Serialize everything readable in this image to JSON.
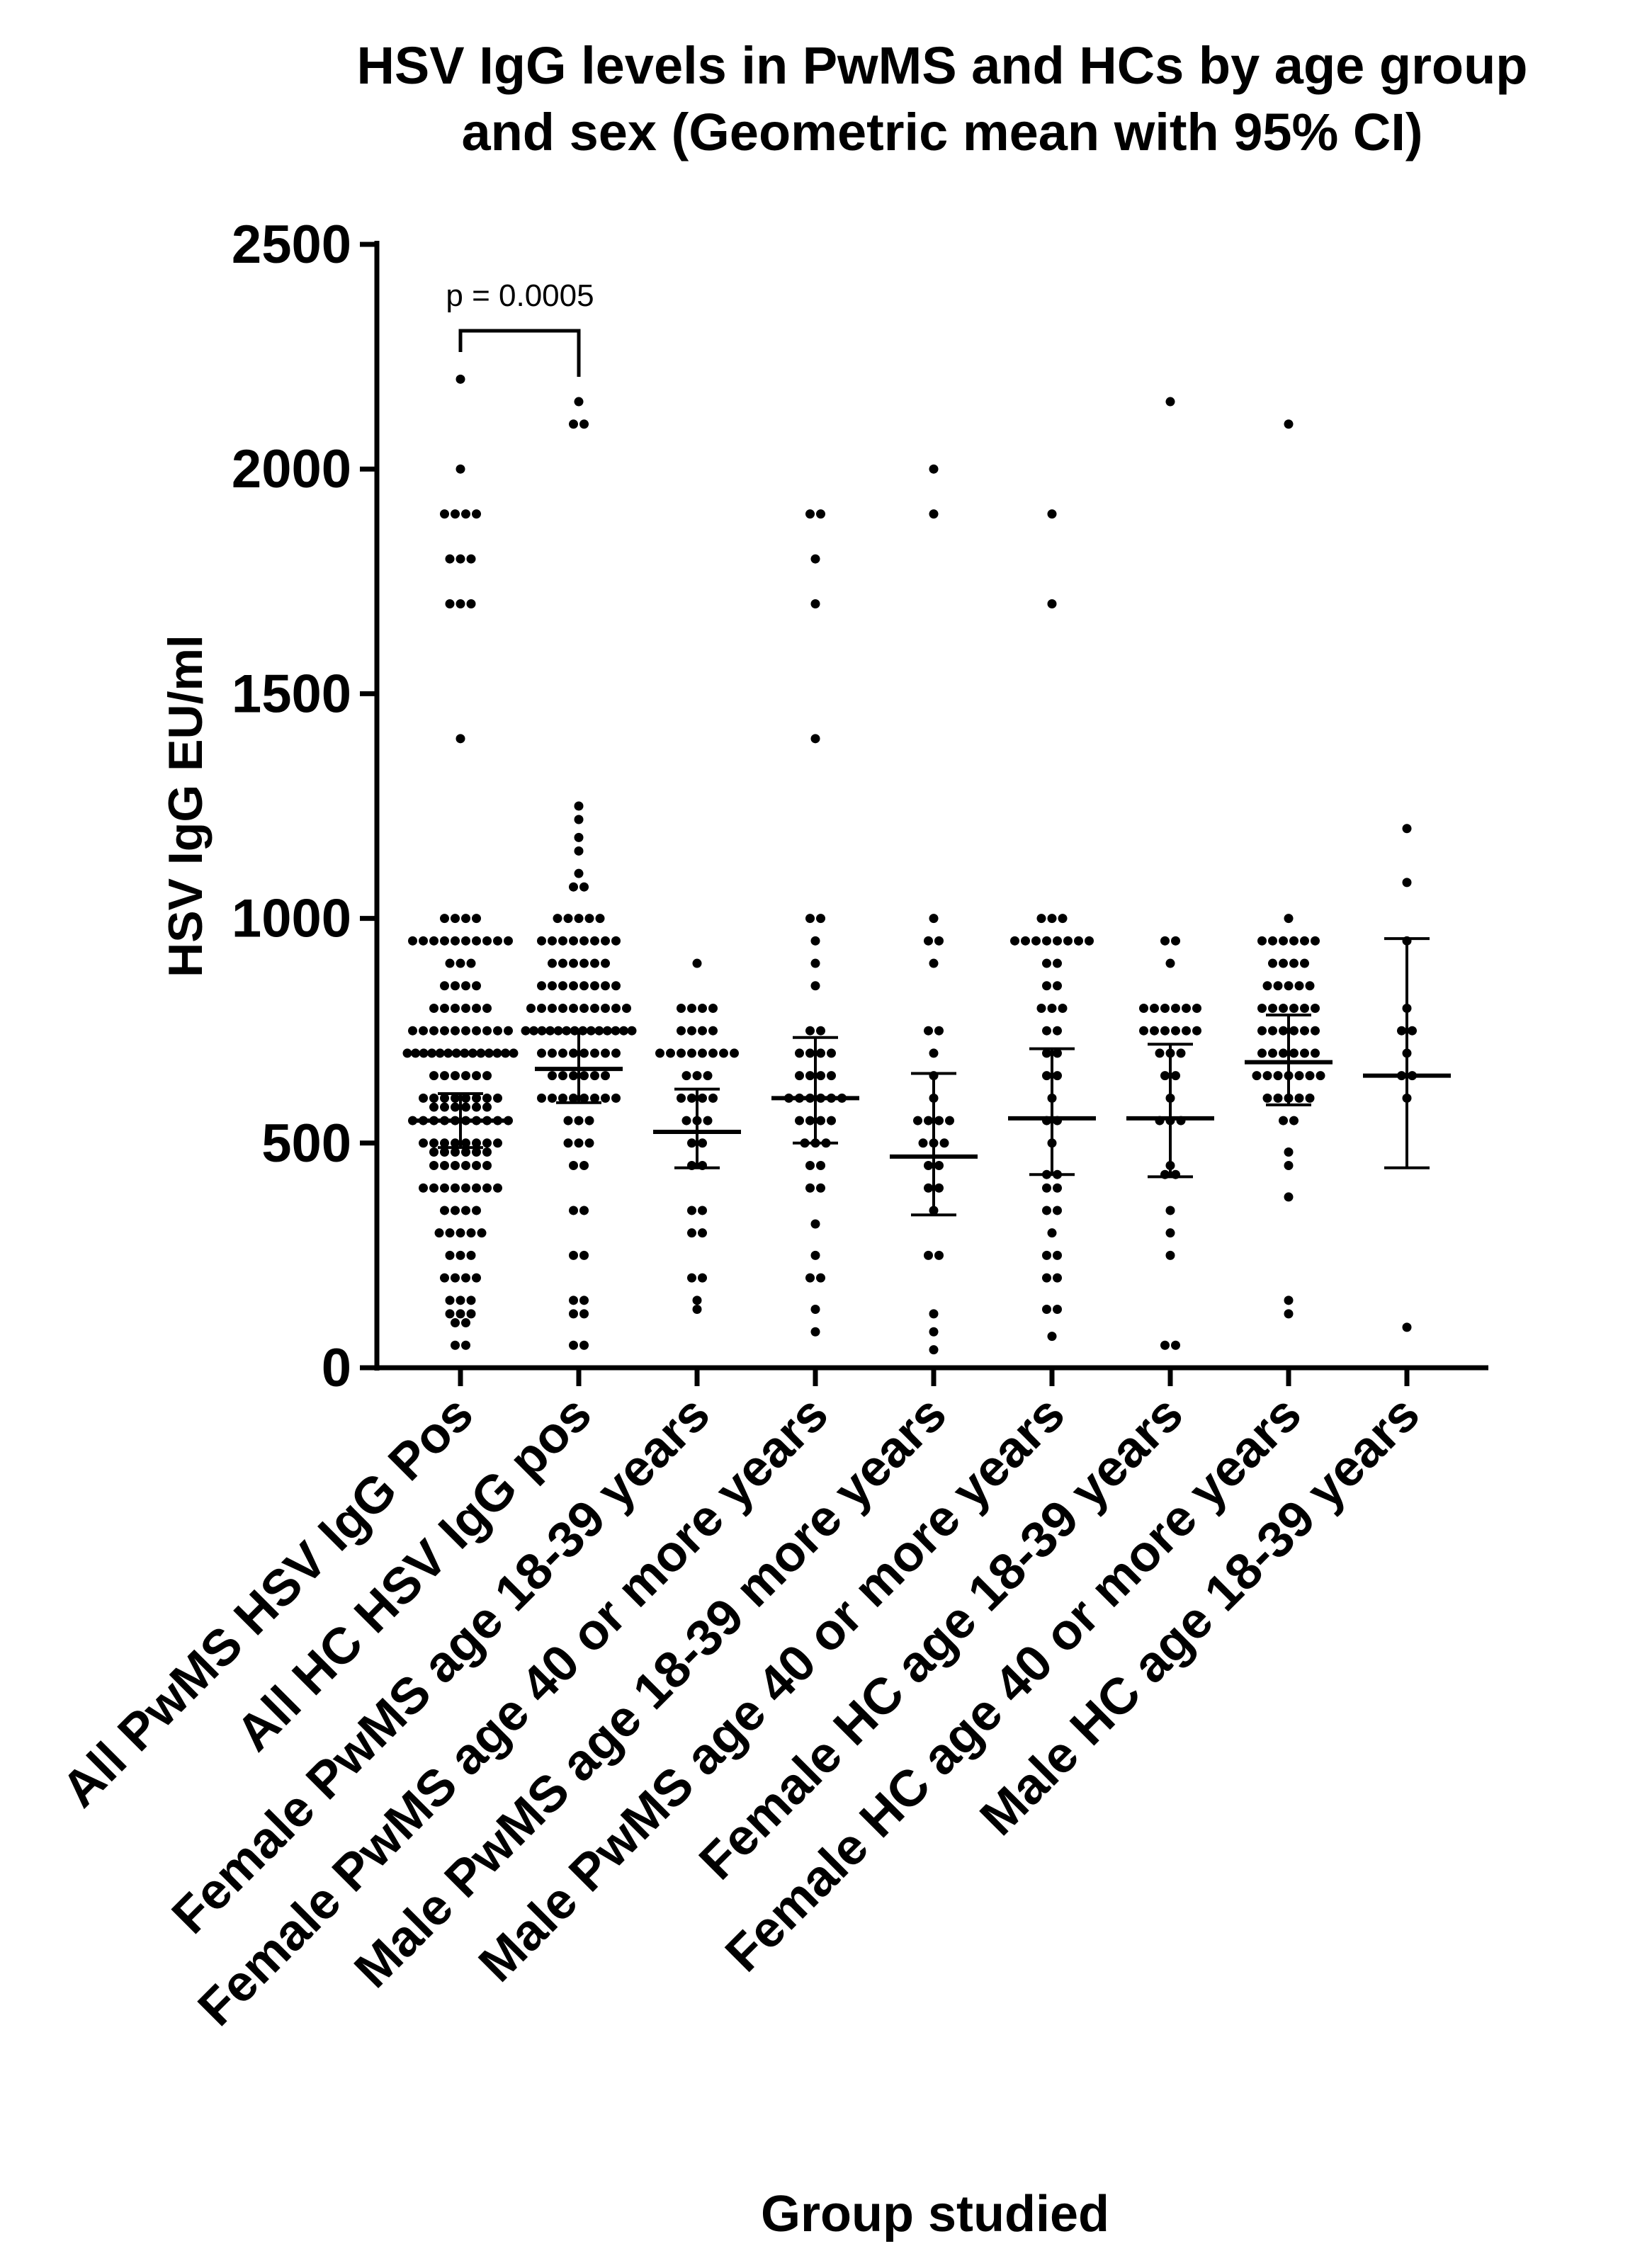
{
  "chart_data": {
    "type": "dotplot",
    "title": [
      "HSV IgG levels in PwMS and HCs by age group",
      "and sex (Geometric mean with 95% CI)"
    ],
    "y_label": "HSV IgG EU/ml",
    "x_label": "Group studied",
    "annotation": "p = 0.0005",
    "categories": [
      "All PwMS HSV IgG Pos",
      "All HC HSV IgG pos",
      "Female PwMS age 18-39 years",
      "Female PwMS age 40 or more years",
      "Male PwMS age 18-39 more years",
      "Male PwMS age 40 or more years",
      "Female HC age 18-39 years",
      "Female HC age 40 or more years",
      "Male HC age 18-39 years"
    ],
    "points": [
      [
        2200,
        2000,
        1900,
        1900,
        1900,
        1900,
        1800,
        1800,
        1800,
        1700,
        1700,
        1700,
        1400,
        1000,
        1000,
        1000,
        1000,
        950,
        950,
        950,
        950,
        950,
        950,
        950,
        950,
        950,
        950,
        900,
        900,
        900,
        850,
        850,
        850,
        850,
        800,
        800,
        800,
        800,
        800,
        800,
        750,
        750,
        750,
        750,
        750,
        750,
        750,
        750,
        750,
        750,
        700,
        700,
        700,
        700,
        700,
        700,
        700,
        700,
        700,
        700,
        700,
        700,
        700,
        700,
        650,
        650,
        650,
        650,
        650,
        650,
        600,
        600,
        600,
        600,
        600,
        600,
        600,
        600,
        580,
        580,
        580,
        580,
        580,
        580,
        550,
        550,
        550,
        550,
        550,
        550,
        550,
        550,
        550,
        550,
        500,
        500,
        500,
        500,
        500,
        500,
        500,
        500,
        480,
        480,
        480,
        480,
        480,
        480,
        450,
        450,
        450,
        450,
        450,
        450,
        400,
        400,
        400,
        400,
        400,
        400,
        400,
        400,
        350,
        350,
        350,
        350,
        300,
        300,
        300,
        300,
        300,
        250,
        250,
        250,
        200,
        200,
        200,
        200,
        150,
        150,
        150,
        120,
        120,
        120,
        100,
        100,
        50,
        50
      ],
      [
        2150,
        2100,
        2100,
        1250,
        1220,
        1180,
        1150,
        1100,
        1070,
        1070,
        1000,
        1000,
        1000,
        1000,
        1000,
        950,
        950,
        950,
        950,
        950,
        950,
        950,
        950,
        900,
        900,
        900,
        900,
        900,
        900,
        850,
        850,
        850,
        850,
        850,
        850,
        850,
        850,
        800,
        800,
        800,
        800,
        800,
        800,
        800,
        800,
        800,
        800,
        750,
        750,
        750,
        750,
        750,
        750,
        750,
        750,
        750,
        750,
        750,
        750,
        750,
        750,
        700,
        700,
        700,
        700,
        700,
        700,
        700,
        700,
        650,
        650,
        650,
        650,
        650,
        650,
        600,
        600,
        600,
        600,
        600,
        600,
        600,
        600,
        550,
        550,
        550,
        500,
        500,
        500,
        450,
        450,
        350,
        350,
        250,
        250,
        150,
        150,
        120,
        120,
        50,
        50
      ],
      [
        900,
        800,
        800,
        800,
        800,
        750,
        750,
        750,
        750,
        700,
        700,
        700,
        700,
        700,
        700,
        700,
        700,
        650,
        650,
        650,
        600,
        600,
        600,
        600,
        550,
        550,
        550,
        500,
        500,
        450,
        450,
        350,
        350,
        300,
        300,
        200,
        200,
        150,
        130
      ],
      [
        1900,
        1900,
        1800,
        1700,
        1400,
        1000,
        1000,
        950,
        900,
        850,
        750,
        750,
        700,
        700,
        700,
        700,
        650,
        650,
        650,
        650,
        600,
        600,
        600,
        600,
        600,
        600,
        550,
        550,
        550,
        550,
        500,
        500,
        500,
        450,
        450,
        400,
        400,
        320,
        250,
        200,
        200,
        130,
        80
      ],
      [
        2000,
        1900,
        1000,
        950,
        950,
        900,
        750,
        750,
        700,
        650,
        600,
        550,
        550,
        550,
        550,
        500,
        500,
        500,
        450,
        450,
        400,
        400,
        350,
        250,
        250,
        120,
        80,
        40
      ],
      [
        1900,
        1700,
        1000,
        1000,
        1000,
        950,
        950,
        950,
        950,
        950,
        950,
        950,
        950,
        900,
        900,
        850,
        850,
        800,
        800,
        800,
        750,
        750,
        700,
        700,
        650,
        650,
        600,
        550,
        550,
        500,
        430,
        430,
        400,
        400,
        350,
        350,
        300,
        250,
        250,
        200,
        200,
        130,
        130,
        70
      ],
      [
        2150,
        950,
        950,
        900,
        800,
        800,
        800,
        800,
        800,
        800,
        750,
        750,
        750,
        750,
        750,
        750,
        700,
        700,
        700,
        650,
        650,
        600,
        550,
        550,
        550,
        450,
        430,
        430,
        350,
        300,
        250,
        50,
        50
      ],
      [
        2100,
        1000,
        950,
        950,
        950,
        950,
        950,
        950,
        900,
        900,
        900,
        900,
        850,
        850,
        850,
        850,
        850,
        800,
        800,
        800,
        800,
        800,
        800,
        750,
        750,
        750,
        750,
        750,
        750,
        700,
        700,
        700,
        700,
        700,
        700,
        650,
        650,
        650,
        650,
        650,
        650,
        650,
        600,
        600,
        600,
        600,
        600,
        550,
        550,
        480,
        450,
        380,
        150,
        120
      ],
      [
        1200,
        1080,
        950,
        800,
        750,
        750,
        700,
        650,
        650,
        600,
        90
      ]
    ],
    "means": [
      550,
      665,
      525,
      600,
      470,
      555,
      555,
      680,
      650
    ],
    "ci_low": [
      490,
      590,
      445,
      500,
      340,
      430,
      425,
      585,
      445
    ],
    "ci_high": [
      610,
      750,
      620,
      735,
      655,
      710,
      720,
      785,
      955
    ],
    "ylim": [
      0,
      2500
    ],
    "yticks": [
      0,
      500,
      1000,
      1500,
      2000,
      2500
    ],
    "color": "#000000"
  }
}
